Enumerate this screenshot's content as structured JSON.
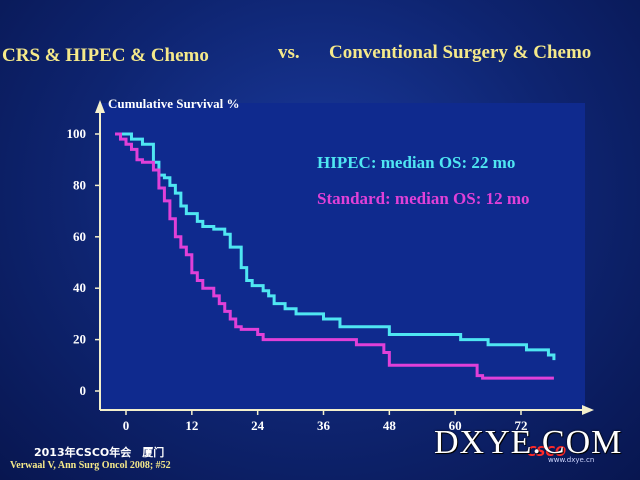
{
  "header": {
    "left": "CRS & HIPEC & Chemo",
    "vs": "vs.",
    "right": "Conventional Surgery & Chemo"
  },
  "footer": {
    "event": "2013年CSCO年会　厦门",
    "citation": "Verwaal V, Ann Surg Oncol 2008; #52"
  },
  "watermark": {
    "text": "DXYE.COM",
    "sub": "www.dxye.cn",
    "logo": "CSCO"
  },
  "colors": {
    "hipec": "#4fe6f2",
    "standard": "#e040d8",
    "axis": "#f4f0cc",
    "annotation_hipec": "#4fe6f2",
    "annotation_standard": "#e040d8",
    "header": "#f5e98a"
  },
  "chart_data": {
    "type": "line",
    "title": "",
    "ylabel": "Cumulative Survival %",
    "xlabel": "",
    "xlim": [
      -3,
      80
    ],
    "ylim": [
      -5,
      105
    ],
    "x_ticks": [
      0,
      12,
      24,
      36,
      48,
      60,
      72
    ],
    "y_ticks": [
      0,
      20,
      40,
      60,
      80,
      100
    ],
    "grid": false,
    "annotations": [
      {
        "text": "HIPEC: median OS: 22 mo",
        "series": "hipec"
      },
      {
        "text": "Standard: median OS: 12 mo",
        "series": "standard"
      }
    ],
    "series": [
      {
        "key": "hipec",
        "steps": [
          [
            -2,
            100
          ],
          [
            0,
            100
          ],
          [
            1,
            98
          ],
          [
            3,
            96
          ],
          [
            5,
            89
          ],
          [
            6,
            84
          ],
          [
            7,
            83
          ],
          [
            8,
            80
          ],
          [
            9,
            77
          ],
          [
            10,
            72
          ],
          [
            11,
            69
          ],
          [
            13,
            66
          ],
          [
            14,
            64
          ],
          [
            16,
            63
          ],
          [
            18,
            61
          ],
          [
            19,
            56
          ],
          [
            21,
            48
          ],
          [
            22,
            43
          ],
          [
            23,
            41
          ],
          [
            25,
            39
          ],
          [
            26,
            37
          ],
          [
            27,
            34
          ],
          [
            29,
            32
          ],
          [
            31,
            30
          ],
          [
            36,
            28
          ],
          [
            39,
            25
          ],
          [
            48,
            22
          ],
          [
            61,
            20
          ],
          [
            66,
            18
          ],
          [
            73,
            16
          ],
          [
            77,
            14
          ],
          [
            78,
            12
          ]
        ]
      },
      {
        "key": "standard",
        "steps": [
          [
            -2,
            100
          ],
          [
            -1,
            98
          ],
          [
            0,
            96
          ],
          [
            1,
            94
          ],
          [
            2,
            90
          ],
          [
            3,
            89
          ],
          [
            5,
            86
          ],
          [
            6,
            79
          ],
          [
            7,
            74
          ],
          [
            8,
            67
          ],
          [
            9,
            60
          ],
          [
            10,
            56
          ],
          [
            11,
            53
          ],
          [
            12,
            46
          ],
          [
            13,
            43
          ],
          [
            14,
            40
          ],
          [
            16,
            37
          ],
          [
            17,
            34
          ],
          [
            18,
            31
          ],
          [
            19,
            28
          ],
          [
            20,
            25
          ],
          [
            21,
            24
          ],
          [
            24,
            22
          ],
          [
            25,
            20
          ],
          [
            42,
            18
          ],
          [
            47,
            15
          ],
          [
            48,
            10
          ],
          [
            64,
            6
          ],
          [
            65,
            5
          ],
          [
            78,
            5
          ]
        ]
      }
    ]
  }
}
